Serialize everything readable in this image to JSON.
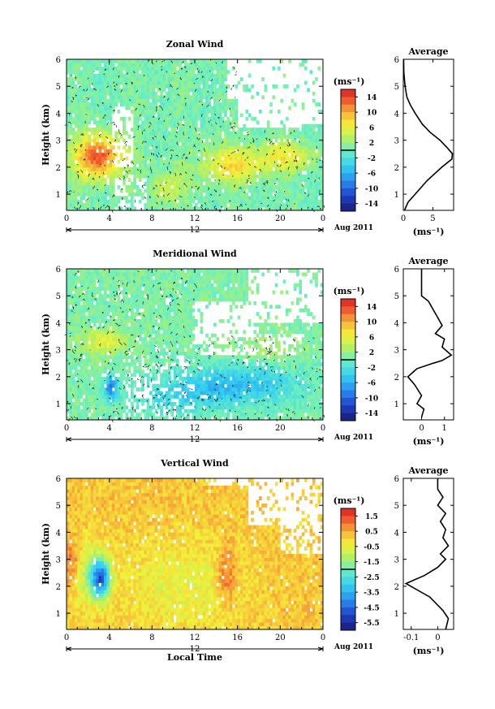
{
  "date_label": "Aug 2011",
  "xaxis": {
    "title": "Local Time",
    "ticks": [
      "0",
      "4",
      "8",
      "12",
      "16",
      "20",
      "0"
    ],
    "mid_marker": "12"
  },
  "panels": [
    {
      "id": "zonal",
      "title": "Zonal Wind",
      "ylabel": "Height (km)",
      "unit_label": "(ms⁻¹)",
      "colorbar_ticks": [
        "14",
        "10",
        "6",
        "2",
        "-2",
        "-6",
        "-10",
        "-14"
      ]
    },
    {
      "id": "meridional",
      "title": "Meridional Wind",
      "ylabel": "Height (km)",
      "unit_label": "(ms⁻¹)",
      "colorbar_ticks": [
        "14",
        "10",
        "6",
        "2",
        "-2",
        "-6",
        "-10",
        "-14"
      ]
    },
    {
      "id": "vertical",
      "title": "Vertical Wind",
      "ylabel": "Height (km)",
      "unit_label": "(ms⁻¹)",
      "colorbar_ticks": [
        "1.5",
        "0.5",
        "-0.5",
        "-1.5",
        "-2.5",
        "-3.5",
        "-4.5",
        "-5.5"
      ]
    }
  ],
  "chart_data": [
    {
      "type": "heatmap",
      "title": "Zonal Wind",
      "xlabel": "",
      "ylabel": "Height (km)",
      "xlim": [
        0,
        24
      ],
      "ylim": [
        0.4,
        6
      ],
      "yticks": [
        1,
        2,
        3,
        4,
        5,
        6
      ],
      "color_range": [
        -16,
        16
      ],
      "colorbar_unit": "(ms⁻¹)",
      "description_values": "mostly weak easterly-to-neutral (~0 to +2 m/s, green) above 3.5 km; strong westerly (10-16 m/s, red/orange) between 1.5-3.2 km from 01-05 LT and moderate (6-10 m/s) around 15-22 LT; white = no data"
    },
    {
      "type": "line",
      "title": "Average",
      "xlabel": "(ms⁻¹)",
      "ylabel": "",
      "xlim": [
        0,
        8.5
      ],
      "ylim": [
        0.4,
        6
      ],
      "xticks": [
        0,
        5
      ],
      "yticks": [
        1,
        2,
        3,
        4,
        5,
        6
      ],
      "x": [
        0.2,
        0.8,
        2.0,
        4.0,
        6.5,
        8.2,
        8.3,
        7.5,
        6.2,
        4.5,
        3.2,
        2.0,
        1.2,
        0.6,
        0.3,
        0.1,
        0.05
      ],
      "y": [
        0.4,
        0.7,
        1.0,
        1.5,
        2.0,
        2.3,
        2.5,
        2.7,
        3.0,
        3.3,
        3.6,
        4.0,
        4.3,
        4.6,
        5.0,
        5.5,
        6.0
      ]
    },
    {
      "type": "heatmap",
      "title": "Meridional Wind",
      "xlabel": "",
      "ylabel": "Height (km)",
      "xlim": [
        0,
        24
      ],
      "ylim": [
        0.4,
        6
      ],
      "yticks": [
        1,
        2,
        3,
        4,
        5,
        6
      ],
      "color_range": [
        -16,
        16
      ],
      "colorbar_unit": "(ms⁻¹)",
      "description_values": "near zero (green/cyan) above 3 km; weak to moderate northerly negative values (-2 to -6 m/s, cyan/blue) between 0.5-2.5 km after 08 LT; strong negative (-10 to -14 m/s) near 04 LT at 1.5-2 km"
    },
    {
      "type": "line",
      "title": "Average",
      "xlabel": "(ms⁻¹)",
      "ylabel": "",
      "xlim": [
        -0.8,
        1.4
      ],
      "ylim": [
        0.4,
        6
      ],
      "xticks": [
        0,
        1
      ],
      "yticks": [
        1,
        2,
        3,
        4,
        5,
        6
      ],
      "x": [
        0.0,
        0.1,
        -0.2,
        0.0,
        -0.3,
        -0.6,
        -0.2,
        0.5,
        0.9,
        1.3,
        0.9,
        1.0,
        0.6,
        0.9,
        0.7,
        0.5,
        0.3,
        0.0,
        0.0,
        0.0
      ],
      "y": [
        0.5,
        0.8,
        1.0,
        1.3,
        1.7,
        2.0,
        2.3,
        2.5,
        2.6,
        2.8,
        3.1,
        3.4,
        3.6,
        3.9,
        4.2,
        4.5,
        4.8,
        5.0,
        5.5,
        6.0
      ]
    },
    {
      "type": "heatmap",
      "title": "Vertical Wind",
      "xlabel": "Local Time",
      "ylabel": "Height (km)",
      "xlim": [
        0,
        24
      ],
      "ylim": [
        0.4,
        6
      ],
      "yticks": [
        1,
        2,
        3,
        4,
        5,
        6
      ],
      "color_range": [
        -6,
        2
      ],
      "colorbar_unit": "(ms⁻¹)",
      "description_values": "mostly ~0 m/s (orange-yellow) everywhere; stronger upward (1-1.5 m/s, red) near 2.5-3.2 km at 00-01 LT and 15-16 LT; downward (-2 to -4 m/s, cyan/blue) around 02-04 LT at 1.8-2.8 km"
    },
    {
      "type": "line",
      "title": "Average",
      "xlabel": "(ms⁻¹)",
      "ylabel": "",
      "xlim": [
        -0.13,
        0.06
      ],
      "ylim": [
        0.4,
        6
      ],
      "xticks": [
        -0.1,
        0.0
      ],
      "yticks": [
        1,
        2,
        3,
        4,
        5,
        6
      ],
      "x": [
        0.03,
        0.04,
        0.02,
        -0.03,
        -0.12,
        -0.05,
        0.0,
        0.03,
        0.01,
        0.04,
        0.02,
        0.03,
        0.01,
        0.03,
        0.0,
        0.02,
        0.0,
        0.0
      ],
      "y": [
        0.4,
        0.8,
        1.1,
        1.6,
        2.1,
        2.4,
        2.7,
        3.0,
        3.2,
        3.5,
        3.8,
        4.1,
        4.4,
        4.7,
        5.0,
        5.3,
        5.6,
        6.0
      ]
    }
  ]
}
